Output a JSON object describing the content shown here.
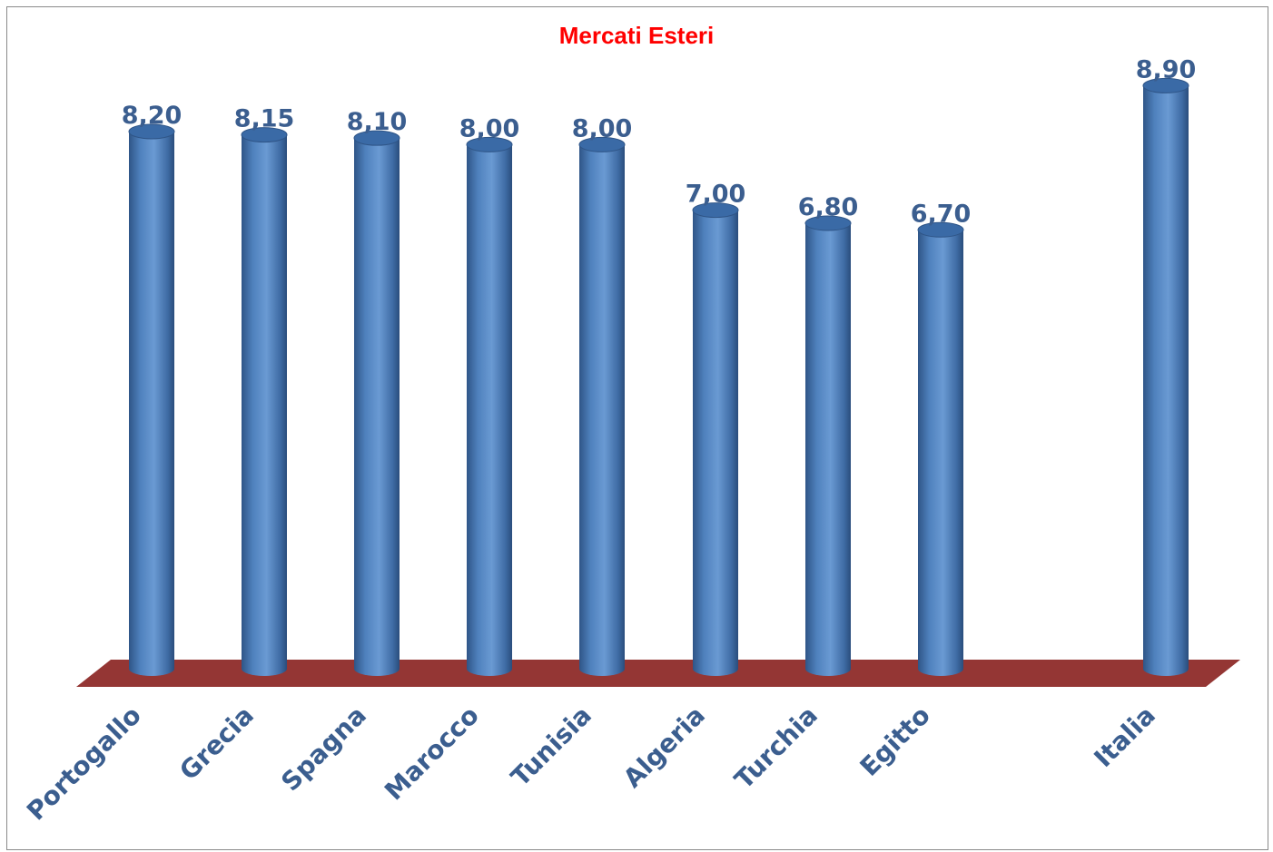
{
  "chart_data": {
    "type": "bar",
    "title": "Mercati Esteri",
    "categories": [
      "Portogallo",
      "Grecia",
      "Spagna",
      "Marocco",
      "Tunisia",
      "Algeria",
      "Turchia",
      "Egitto",
      "Italia"
    ],
    "values": [
      8.2,
      8.15,
      8.1,
      8.0,
      8.0,
      7.0,
      6.8,
      6.7,
      8.9
    ],
    "value_labels": [
      "8,20",
      "8,15",
      "8,10",
      "8,00",
      "8,00",
      "7,00",
      "6,80",
      "6,70",
      "8,90"
    ],
    "xlabel": "",
    "ylabel": "",
    "grid": false,
    "legend": "none",
    "style": "3d-cylinder",
    "colors": {
      "bar": "#4f81bd",
      "floor": "#943634",
      "labels": "#3b5e8f",
      "title": "#ff0000"
    }
  }
}
